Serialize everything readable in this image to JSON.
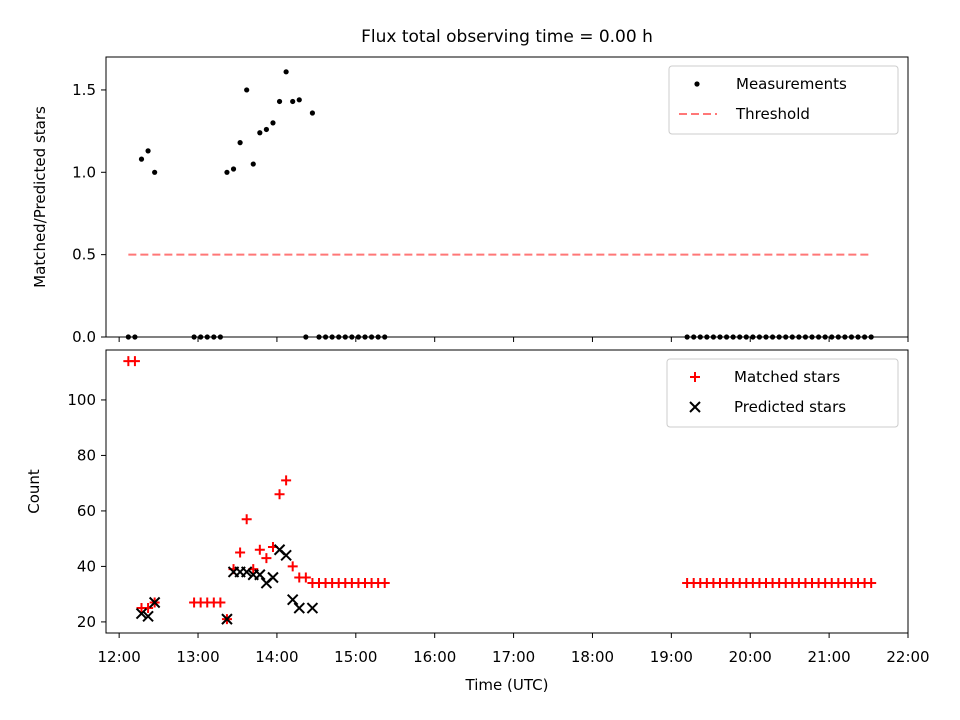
{
  "chart_data": [
    {
      "type": "scatter",
      "title": "Flux total observing time = 0.00 h",
      "xlabel": "",
      "ylabel": "Matched/Predicted stars",
      "xlim": [
        "11:50",
        "22:00"
      ],
      "ylim": [
        0,
        1.7
      ],
      "yticks": [
        "0.0",
        "0.5",
        "1.0",
        "1.5"
      ],
      "grid": false,
      "legend": "top-right",
      "series": [
        {
          "name": "Measurements",
          "marker": "dot",
          "color": "#000000",
          "points": [
            [
              "12:07",
              0.0
            ],
            [
              "12:12",
              0.0
            ],
            [
              "12:17",
              1.08
            ],
            [
              "12:22",
              1.13
            ],
            [
              "12:27",
              1.0
            ],
            [
              "12:57",
              0.0
            ],
            [
              "13:02",
              0.0
            ],
            [
              "13:07",
              0.0
            ],
            [
              "13:12",
              0.0
            ],
            [
              "13:17",
              0.0
            ],
            [
              "13:22",
              1.0
            ],
            [
              "13:27",
              1.02
            ],
            [
              "13:32",
              1.18
            ],
            [
              "13:37",
              1.5
            ],
            [
              "13:42",
              1.05
            ],
            [
              "13:47",
              1.24
            ],
            [
              "13:52",
              1.26
            ],
            [
              "13:57",
              1.3
            ],
            [
              "14:02",
              1.43
            ],
            [
              "14:07",
              1.61
            ],
            [
              "14:12",
              1.43
            ],
            [
              "14:17",
              1.44
            ],
            [
              "14:22",
              0.0
            ],
            [
              "14:27",
              1.36
            ],
            [
              "14:32",
              0.0
            ],
            [
              "14:37",
              0.0
            ],
            [
              "14:42",
              0.0
            ],
            [
              "14:47",
              0.0
            ],
            [
              "14:52",
              0.0
            ],
            [
              "14:57",
              0.0
            ],
            [
              "15:02",
              0.0
            ],
            [
              "15:07",
              0.0
            ],
            [
              "15:12",
              0.0
            ],
            [
              "15:17",
              0.0
            ],
            [
              "15:22",
              0.0
            ],
            [
              "19:12",
              0.0
            ],
            [
              "19:17",
              0.0
            ],
            [
              "19:22",
              0.0
            ],
            [
              "19:27",
              0.0
            ],
            [
              "19:32",
              0.0
            ],
            [
              "19:37",
              0.0
            ],
            [
              "19:42",
              0.0
            ],
            [
              "19:47",
              0.0
            ],
            [
              "19:52",
              0.0
            ],
            [
              "19:57",
              0.0
            ],
            [
              "20:02",
              0.0
            ],
            [
              "20:07",
              0.0
            ],
            [
              "20:12",
              0.0
            ],
            [
              "20:17",
              0.0
            ],
            [
              "20:22",
              0.0
            ],
            [
              "20:27",
              0.0
            ],
            [
              "20:32",
              0.0
            ],
            [
              "20:37",
              0.0
            ],
            [
              "20:42",
              0.0
            ],
            [
              "20:47",
              0.0
            ],
            [
              "20:52",
              0.0
            ],
            [
              "20:57",
              0.0
            ],
            [
              "21:02",
              0.0
            ],
            [
              "21:07",
              0.0
            ],
            [
              "21:12",
              0.0
            ],
            [
              "21:17",
              0.0
            ],
            [
              "21:22",
              0.0
            ],
            [
              "21:27",
              0.0
            ],
            [
              "21:32",
              0.0
            ]
          ]
        },
        {
          "name": "Threshold",
          "marker": "dashed-line",
          "color": "#ff7777",
          "points": [
            [
              "12:07",
              0.5
            ],
            [
              "21:32",
              0.5
            ]
          ]
        }
      ]
    },
    {
      "type": "scatter",
      "title": "",
      "xlabel": "Time (UTC)",
      "ylabel": "Count",
      "xlim": [
        "11:50",
        "22:00"
      ],
      "xticks": [
        "12:00",
        "13:00",
        "14:00",
        "15:00",
        "16:00",
        "17:00",
        "18:00",
        "19:00",
        "20:00",
        "21:00",
        "22:00"
      ],
      "ylim": [
        16,
        118
      ],
      "yticks": [
        "20",
        "40",
        "60",
        "80",
        "100"
      ],
      "grid": false,
      "legend": "top-right",
      "series": [
        {
          "name": "Matched stars",
          "marker": "plus",
          "color": "#ff0000",
          "points": [
            [
              "12:07",
              114
            ],
            [
              "12:12",
              114
            ],
            [
              "12:17",
              25
            ],
            [
              "12:22",
              25
            ],
            [
              "12:27",
              27
            ],
            [
              "12:57",
              27
            ],
            [
              "13:02",
              27
            ],
            [
              "13:07",
              27
            ],
            [
              "13:12",
              27
            ],
            [
              "13:17",
              27
            ],
            [
              "13:22",
              21
            ],
            [
              "13:27",
              39
            ],
            [
              "13:32",
              45
            ],
            [
              "13:37",
              57
            ],
            [
              "13:42",
              39
            ],
            [
              "13:47",
              46
            ],
            [
              "13:52",
              43
            ],
            [
              "13:57",
              47
            ],
            [
              "14:02",
              66
            ],
            [
              "14:07",
              71
            ],
            [
              "14:12",
              40
            ],
            [
              "14:17",
              36
            ],
            [
              "14:22",
              36
            ],
            [
              "14:27",
              34
            ],
            [
              "14:32",
              34
            ],
            [
              "14:37",
              34
            ],
            [
              "14:42",
              34
            ],
            [
              "14:47",
              34
            ],
            [
              "14:52",
              34
            ],
            [
              "14:57",
              34
            ],
            [
              "15:02",
              34
            ],
            [
              "15:07",
              34
            ],
            [
              "15:12",
              34
            ],
            [
              "15:17",
              34
            ],
            [
              "15:22",
              34
            ],
            [
              "19:12",
              34
            ],
            [
              "19:17",
              34
            ],
            [
              "19:22",
              34
            ],
            [
              "19:27",
              34
            ],
            [
              "19:32",
              34
            ],
            [
              "19:37",
              34
            ],
            [
              "19:42",
              34
            ],
            [
              "19:47",
              34
            ],
            [
              "19:52",
              34
            ],
            [
              "19:57",
              34
            ],
            [
              "20:02",
              34
            ],
            [
              "20:07",
              34
            ],
            [
              "20:12",
              34
            ],
            [
              "20:17",
              34
            ],
            [
              "20:22",
              34
            ],
            [
              "20:27",
              34
            ],
            [
              "20:32",
              34
            ],
            [
              "20:37",
              34
            ],
            [
              "20:42",
              34
            ],
            [
              "20:47",
              34
            ],
            [
              "20:52",
              34
            ],
            [
              "20:57",
              34
            ],
            [
              "21:02",
              34
            ],
            [
              "21:07",
              34
            ],
            [
              "21:12",
              34
            ],
            [
              "21:17",
              34
            ],
            [
              "21:22",
              34
            ],
            [
              "21:27",
              34
            ],
            [
              "21:32",
              34
            ]
          ]
        },
        {
          "name": "Predicted stars",
          "marker": "x",
          "color": "#000000",
          "points": [
            [
              "12:17",
              23
            ],
            [
              "12:22",
              22
            ],
            [
              "12:27",
              27
            ],
            [
              "13:22",
              21
            ],
            [
              "13:27",
              38
            ],
            [
              "13:32",
              38
            ],
            [
              "13:37",
              38
            ],
            [
              "13:42",
              37
            ],
            [
              "13:47",
              37
            ],
            [
              "13:52",
              34
            ],
            [
              "13:57",
              36
            ],
            [
              "14:02",
              46
            ],
            [
              "14:07",
              44
            ],
            [
              "14:12",
              28
            ],
            [
              "14:17",
              25
            ],
            [
              "14:27",
              25
            ]
          ]
        }
      ]
    }
  ]
}
